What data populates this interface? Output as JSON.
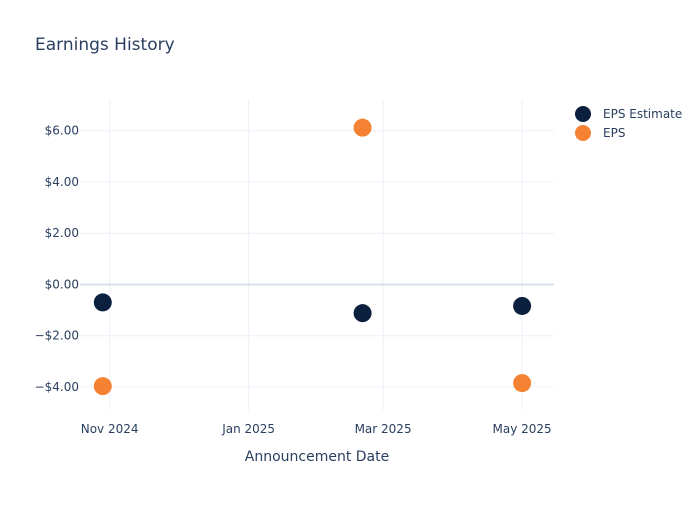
{
  "chart_data": {
    "type": "scatter",
    "title": "Earnings History",
    "xlabel": "Announcement Date",
    "ylabel": "",
    "x_ticks": [
      {
        "date": "2024-11-01",
        "label": "Nov 2024"
      },
      {
        "date": "2025-01-01",
        "label": "Jan 2025"
      },
      {
        "date": "2025-03-01",
        "label": "Mar 2025"
      },
      {
        "date": "2025-05-01",
        "label": "May 2025"
      }
    ],
    "xlim": [
      "2024-10-19",
      "2025-05-15"
    ],
    "y_ticks": [
      {
        "value": 6,
        "label": "$6.00"
      },
      {
        "value": 4,
        "label": "$4.00"
      },
      {
        "value": 2,
        "label": "$2.00"
      },
      {
        "value": 0,
        "label": "$0.00"
      },
      {
        "value": -2,
        "label": "−$2.00"
      },
      {
        "value": -4,
        "label": "−$4.00"
      }
    ],
    "ylim": [
      -4.9,
      7.2
    ],
    "grid": true,
    "legend_position": "top-right",
    "series": [
      {
        "name": "EPS Estimate",
        "color": "#0b1f3f",
        "points": [
          {
            "x": "2024-10-29",
            "y": -0.7
          },
          {
            "x": "2025-02-20",
            "y": -1.12
          },
          {
            "x": "2025-05-01",
            "y": -0.84
          }
        ]
      },
      {
        "name": "EPS",
        "color": "#f58232",
        "points": [
          {
            "x": "2024-10-29",
            "y": -3.97
          },
          {
            "x": "2025-02-20",
            "y": 6.12
          },
          {
            "x": "2025-05-01",
            "y": -3.85
          }
        ]
      }
    ]
  }
}
